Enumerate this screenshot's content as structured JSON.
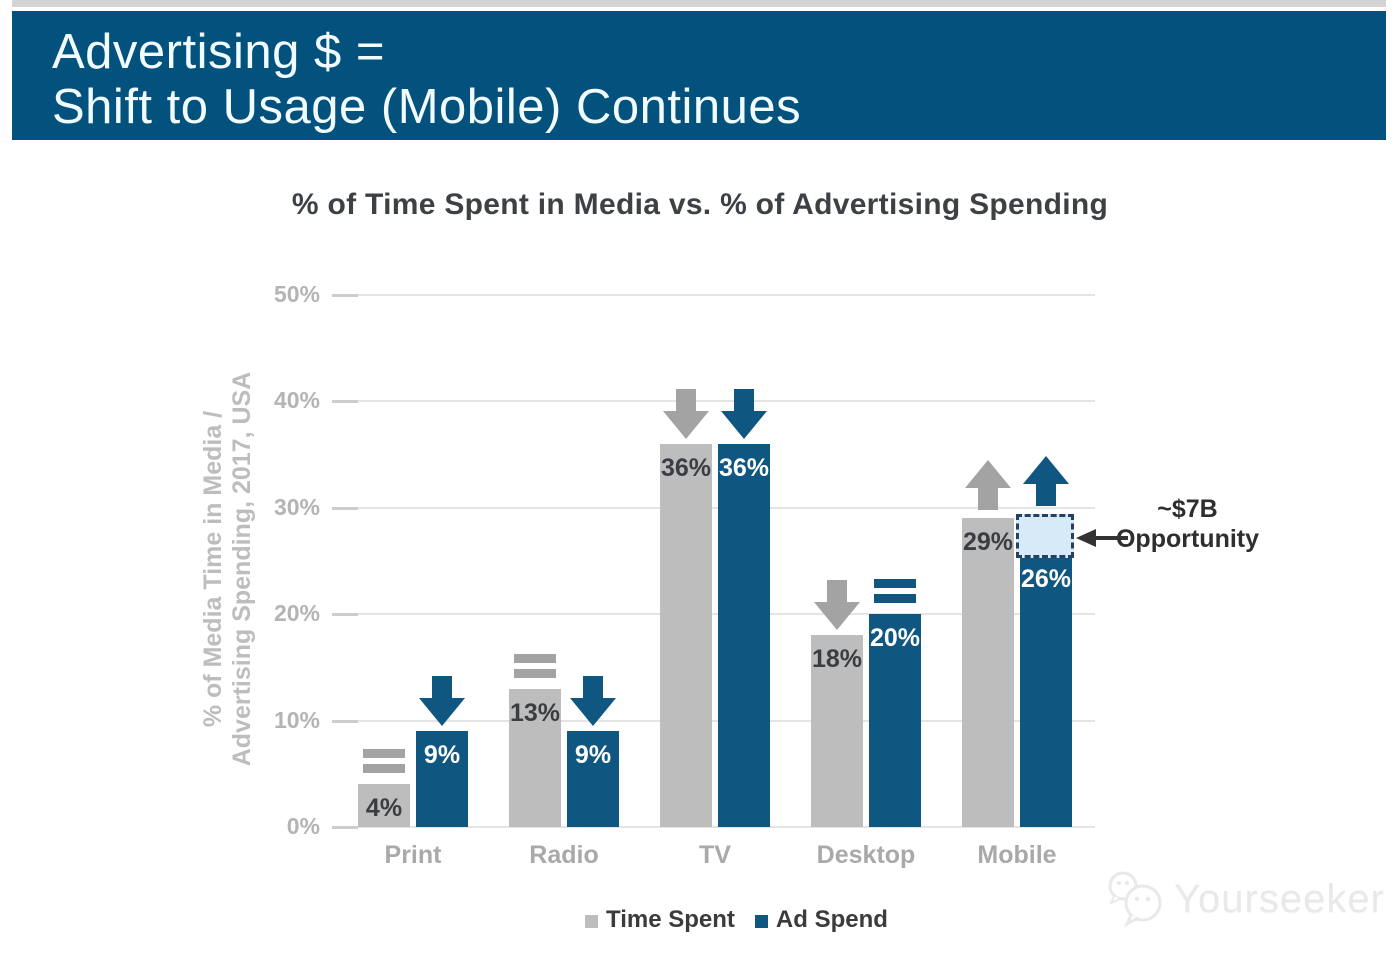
{
  "header": {
    "line1": "Advertising $ =",
    "line2": "Shift to Usage (Mobile) Continues",
    "bg_color": "#02527D",
    "text_color": "#F2FBFF"
  },
  "chart_data": {
    "type": "bar",
    "title": "% of Time Spent in Media vs. % of Advertising Spending",
    "ylabel_line1": "% of Media Time in Media /",
    "ylabel_line2": "Advertising Spending, 2017, USA",
    "categories": [
      "Print",
      "Radio",
      "TV",
      "Desktop",
      "Mobile"
    ],
    "series": [
      {
        "name": "Time Spent",
        "color": "#BDBDBD",
        "label_color": "#3A3E43",
        "trend_color": "#A3A3A3",
        "values": [
          4,
          13,
          36,
          18,
          29
        ],
        "trends": [
          "equal",
          "equal",
          "down",
          "down",
          "up"
        ]
      },
      {
        "name": "Ad Spend",
        "color": "#0F5780",
        "label_color": "#FFFFFF",
        "trend_color": "#0F5780",
        "values": [
          9,
          9,
          36,
          20,
          26
        ],
        "trends": [
          "down",
          "down",
          "down",
          "equal",
          "up"
        ]
      }
    ],
    "value_suffix": "%",
    "y_ticks": [
      "50%",
      "40%",
      "30%",
      "20%",
      "10%",
      "0%"
    ],
    "ylim": [
      0,
      50
    ],
    "grid": true,
    "legend_position": "bottom",
    "annotation": {
      "line1": "~$7B",
      "line2": "Opportunity",
      "category": "Mobile",
      "series": "Ad Spend",
      "from_value": 29,
      "to_value": 26,
      "box_fill": "#D7EAF8",
      "box_border": "#24415E"
    }
  },
  "watermark": {
    "text": "Yourseeker"
  }
}
